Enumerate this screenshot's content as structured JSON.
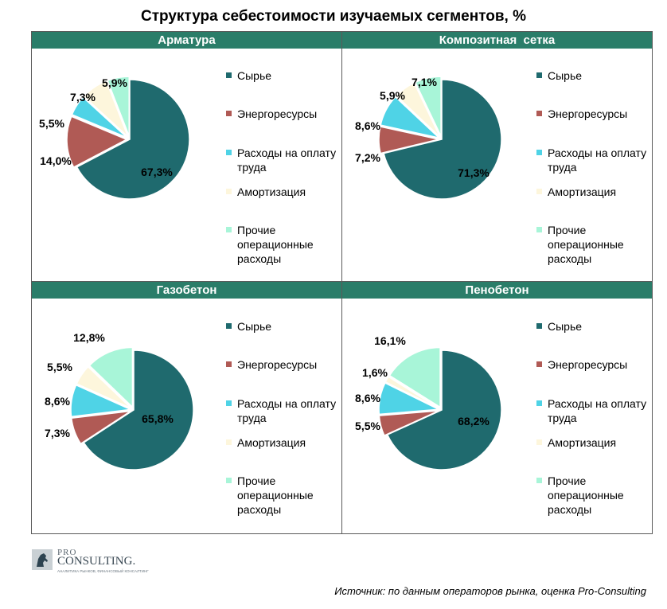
{
  "title": "Структура себестоимости изучаемых сегментов, %",
  "source": "Источник: по данным операторов рынка, оценка Pro-Consulting",
  "logo": {
    "pro": "PRO",
    "consulting": "CONSULTING.",
    "tagline": "АНАЛИТИКА РЫНКОВ, ФИНАНСОВЫЙ КОНСАЛТИНГ"
  },
  "legend": [
    {
      "label": "Сырье",
      "color": "#1f6a6e"
    },
    {
      "label": "Энергоресурсы",
      "color": "#b05a55"
    },
    {
      "label": "Расходы на оплату труда",
      "color": "#4fd3e6"
    },
    {
      "label": "Амортизация",
      "color": "#fdf6dc"
    },
    {
      "label": "Прочие операционные расходы",
      "color": "#a8f5d8"
    }
  ],
  "chart_data": [
    {
      "type": "pie",
      "title": "Арматура",
      "categories": [
        "Сырье",
        "Энергоресурсы",
        "Расходы на оплату труда",
        "Амортизация",
        "Прочие операционные расходы"
      ],
      "values": [
        67.3,
        14.0,
        5.5,
        7.3,
        5.9
      ],
      "labels": [
        "67,3%",
        "14,0%",
        "5,5%",
        "7,3%",
        "5,9%"
      ]
    },
    {
      "type": "pie",
      "title": "Композитная  сетка",
      "categories": [
        "Сырье",
        "Энергоресурсы",
        "Расходы на оплату труда",
        "Амортизация",
        "Прочие операционные расходы"
      ],
      "values": [
        71.3,
        7.2,
        8.6,
        5.9,
        7.1
      ],
      "labels": [
        "71,3%",
        "7,2%",
        "8,6%",
        "5,9%",
        "7,1%"
      ]
    },
    {
      "type": "pie",
      "title": "Газобетон",
      "categories": [
        "Сырье",
        "Энергоресурсы",
        "Расходы на оплату труда",
        "Амортизация",
        "Прочие операционные расходы"
      ],
      "values": [
        65.8,
        7.3,
        8.6,
        5.5,
        12.8
      ],
      "labels": [
        "65,8%",
        "7,3%",
        "8,6%",
        "5,5%",
        "12,8%"
      ]
    },
    {
      "type": "pie",
      "title": "Пенобетон",
      "categories": [
        "Сырье",
        "Энергоресурсы",
        "Расходы на оплату труда",
        "Амортизация",
        "Прочие операционные расходы"
      ],
      "values": [
        68.2,
        5.5,
        8.6,
        1.6,
        16.1
      ],
      "labels": [
        "68,2%",
        "5,5%",
        "8,6%",
        "1,6%",
        "16,1%"
      ]
    }
  ]
}
